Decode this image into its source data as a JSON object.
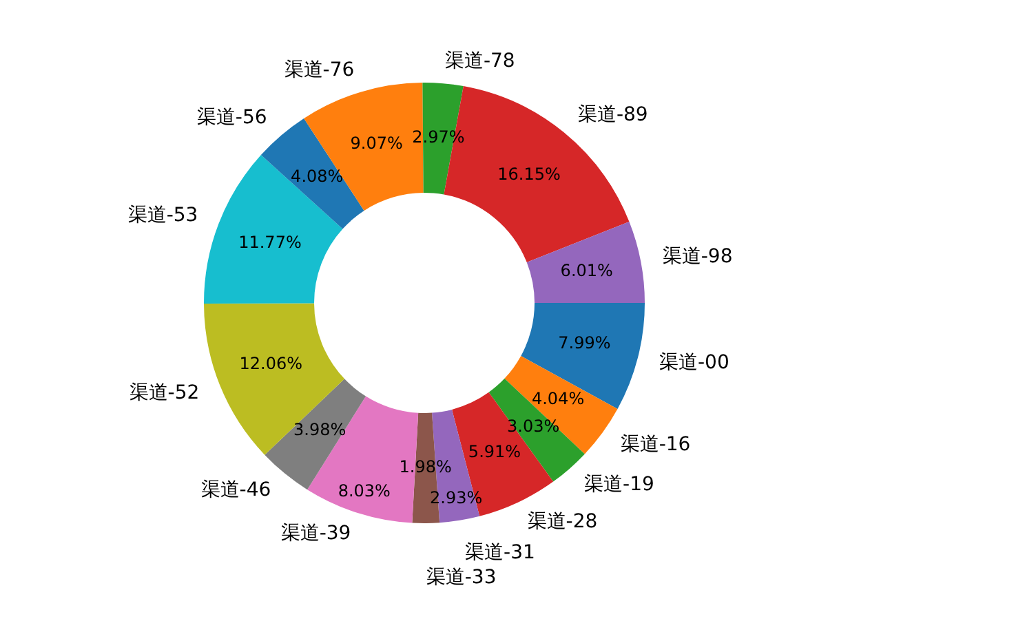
{
  "chart_data": {
    "type": "donut",
    "categories": [
      "渠道-00",
      "渠道-16",
      "渠道-19",
      "渠道-28",
      "渠道-31",
      "渠道-33",
      "渠道-39",
      "渠道-46",
      "渠道-52",
      "渠道-53",
      "渠道-56",
      "渠道-76",
      "渠道-78",
      "渠道-89",
      "渠道-98"
    ],
    "values": [
      7.99,
      4.04,
      3.03,
      5.91,
      2.93,
      1.98,
      8.03,
      3.98,
      12.06,
      11.77,
      4.08,
      9.07,
      2.97,
      16.15,
      6.01
    ],
    "value_labels": [
      "7.99%",
      "4.04%",
      "3.03%",
      "5.91%",
      "2.93%",
      "1.98%",
      "8.03%",
      "3.98%",
      "12.06%",
      "11.77%",
      "4.08%",
      "9.07%",
      "2.97%",
      "16.15%",
      "6.01%"
    ],
    "colors": [
      "#1f77b4",
      "#ff7f0e",
      "#2ca02c",
      "#d62728",
      "#9467bd",
      "#8c564b",
      "#e377c2",
      "#7f7f7f",
      "#bcbd22",
      "#17becf",
      "#1f77b4",
      "#ff7f0e",
      "#2ca02c",
      "#d62728",
      "#9467bd"
    ]
  }
}
